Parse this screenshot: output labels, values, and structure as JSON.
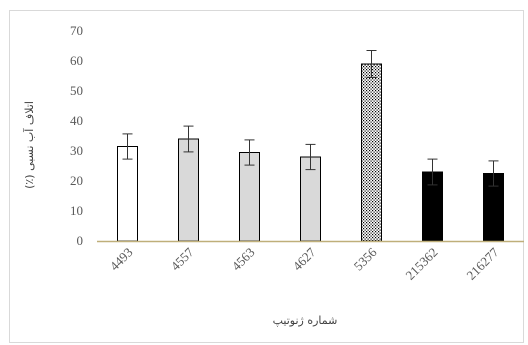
{
  "chart_data": {
    "type": "bar",
    "categories": [
      "4493",
      "4557",
      "4563",
      "4627",
      "5356",
      "215362",
      "216277"
    ],
    "values": [
      31.5,
      34,
      29.5,
      28,
      59,
      23,
      22.5
    ],
    "errors": [
      4.2,
      4.3,
      4.2,
      4.2,
      4.5,
      4.3,
      4.2
    ],
    "fills": [
      "white",
      "light-gray",
      "light-gray",
      "light-gray",
      "dotted",
      "black",
      "black"
    ],
    "xlabel": "شماره ژنوتیپ",
    "ylabel": "اتلاف آب نسبی (٪)",
    "ylim": [
      0,
      70
    ],
    "yticks": [
      0,
      10,
      20,
      30,
      40,
      50,
      60,
      70
    ],
    "grid": false,
    "colors": {
      "white": "#ffffff",
      "light-gray": "#d9d9d9",
      "black": "#000000",
      "axis": "#bfaf7a",
      "bar-edge": "#000000",
      "dotted-bg": "#ffffff",
      "dotted-fg": "#000000"
    }
  }
}
